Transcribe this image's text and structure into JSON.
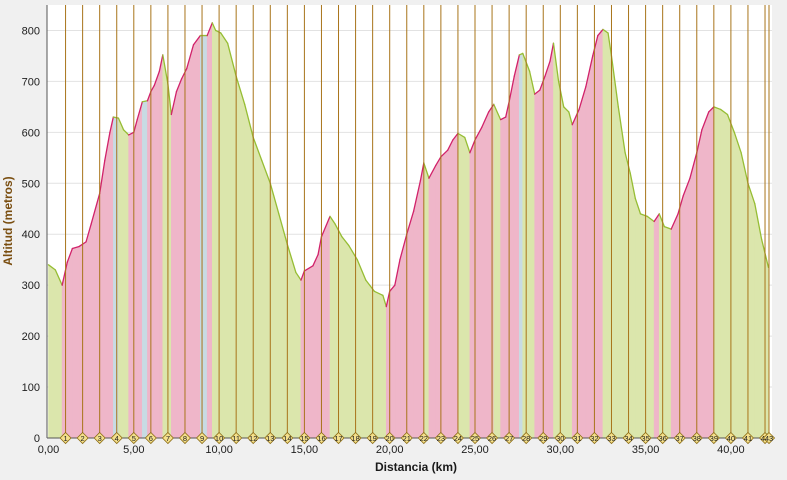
{
  "chart_data": {
    "type": "area",
    "xlabel": "Distancia (km)",
    "ylabel": "Altitud (metros)",
    "xlim": [
      0,
      42.2
    ],
    "ylim": [
      0,
      850
    ],
    "x_ticks": [
      "0,00",
      "5,00",
      "10,00",
      "15,00",
      "20,00",
      "25,00",
      "30,00",
      "35,00",
      "40,00"
    ],
    "y_ticks": [
      "0",
      "100",
      "200",
      "300",
      "400",
      "500",
      "600",
      "700",
      "800"
    ],
    "km_markers": [
      "1",
      "2",
      "3",
      "4",
      "5",
      "6",
      "7",
      "8",
      "9",
      "10",
      "11",
      "12",
      "13",
      "14",
      "15",
      "16",
      "17",
      "18",
      "19",
      "20",
      "21",
      "22",
      "23",
      "24",
      "25",
      "26",
      "27",
      "28",
      "29",
      "30",
      "31",
      "32",
      "33",
      "34",
      "35",
      "36",
      "37",
      "38",
      "39",
      "40",
      "41",
      "42",
      "43"
    ],
    "grid": true,
    "colors": {
      "ascent_line": "#d1226a",
      "ascent_fill": "#efb6c9",
      "descent_line": "#96bd34",
      "descent_fill": "#dbe6ac",
      "flat_fill": "#c8dbe3",
      "km_line": "#a8741a",
      "marker_fill": "#f4e08c",
      "marker_stroke": "#8a6a12",
      "axis_title": "#7a4e10"
    },
    "profile": [
      [
        0.0,
        340
      ],
      [
        0.4,
        330
      ],
      [
        0.8,
        300
      ],
      [
        1.1,
        345
      ],
      [
        1.4,
        372
      ],
      [
        1.8,
        376
      ],
      [
        2.2,
        385
      ],
      [
        2.5,
        420
      ],
      [
        3.0,
        480
      ],
      [
        3.3,
        545
      ],
      [
        3.6,
        600
      ],
      [
        3.8,
        630
      ],
      [
        4.1,
        628
      ],
      [
        4.4,
        605
      ],
      [
        4.7,
        595
      ],
      [
        5.0,
        600
      ],
      [
        5.2,
        625
      ],
      [
        5.5,
        660
      ],
      [
        5.8,
        662
      ],
      [
        6.0,
        680
      ],
      [
        6.2,
        692
      ],
      [
        6.5,
        720
      ],
      [
        6.7,
        752
      ],
      [
        7.0,
        695
      ],
      [
        7.2,
        635
      ],
      [
        7.5,
        680
      ],
      [
        7.8,
        705
      ],
      [
        8.1,
        725
      ],
      [
        8.5,
        772
      ],
      [
        8.9,
        790
      ],
      [
        9.3,
        790
      ],
      [
        9.6,
        815
      ],
      [
        9.8,
        800
      ],
      [
        10.1,
        795
      ],
      [
        10.5,
        775
      ],
      [
        11.0,
        710
      ],
      [
        11.5,
        655
      ],
      [
        12.0,
        590
      ],
      [
        12.5,
        545
      ],
      [
        13.0,
        500
      ],
      [
        13.5,
        440
      ],
      [
        14.0,
        380
      ],
      [
        14.5,
        325
      ],
      [
        14.8,
        310
      ],
      [
        15.0,
        328
      ],
      [
        15.5,
        338
      ],
      [
        15.8,
        360
      ],
      [
        16.0,
        395
      ],
      [
        16.5,
        435
      ],
      [
        16.8,
        420
      ],
      [
        17.2,
        395
      ],
      [
        17.6,
        378
      ],
      [
        18.1,
        350
      ],
      [
        18.6,
        310
      ],
      [
        19.1,
        288
      ],
      [
        19.6,
        280
      ],
      [
        19.8,
        258
      ],
      [
        20.0,
        288
      ],
      [
        20.3,
        300
      ],
      [
        20.6,
        350
      ],
      [
        21.0,
        400
      ],
      [
        21.4,
        445
      ],
      [
        21.8,
        505
      ],
      [
        22.0,
        540
      ],
      [
        22.3,
        510
      ],
      [
        22.7,
        535
      ],
      [
        23.0,
        552
      ],
      [
        23.4,
        565
      ],
      [
        23.7,
        585
      ],
      [
        24.0,
        598
      ],
      [
        24.4,
        590
      ],
      [
        24.7,
        560
      ],
      [
        25.0,
        585
      ],
      [
        25.4,
        610
      ],
      [
        25.8,
        640
      ],
      [
        26.1,
        655
      ],
      [
        26.5,
        625
      ],
      [
        26.8,
        630
      ],
      [
        27.0,
        660
      ],
      [
        27.3,
        710
      ],
      [
        27.6,
        752
      ],
      [
        27.8,
        755
      ],
      [
        28.2,
        720
      ],
      [
        28.5,
        675
      ],
      [
        28.8,
        683
      ],
      [
        29.1,
        710
      ],
      [
        29.4,
        740
      ],
      [
        29.6,
        775
      ],
      [
        29.9,
        700
      ],
      [
        30.2,
        650
      ],
      [
        30.5,
        640
      ],
      [
        30.7,
        615
      ],
      [
        31.1,
        645
      ],
      [
        31.5,
        690
      ],
      [
        31.9,
        750
      ],
      [
        32.2,
        790
      ],
      [
        32.5,
        802
      ],
      [
        32.8,
        795
      ],
      [
        33.0,
        750
      ],
      [
        33.4,
        650
      ],
      [
        33.8,
        560
      ],
      [
        34.1,
        520
      ],
      [
        34.4,
        470
      ],
      [
        34.7,
        440
      ],
      [
        35.1,
        435
      ],
      [
        35.5,
        425
      ],
      [
        35.8,
        440
      ],
      [
        36.1,
        415
      ],
      [
        36.5,
        410
      ],
      [
        36.9,
        440
      ],
      [
        37.2,
        475
      ],
      [
        37.6,
        510
      ],
      [
        38.0,
        560
      ],
      [
        38.3,
        605
      ],
      [
        38.7,
        640
      ],
      [
        39.0,
        650
      ],
      [
        39.4,
        645
      ],
      [
        39.8,
        635
      ],
      [
        40.2,
        600
      ],
      [
        40.6,
        560
      ],
      [
        41.0,
        500
      ],
      [
        41.4,
        460
      ],
      [
        41.8,
        390
      ],
      [
        42.2,
        335
      ]
    ]
  }
}
